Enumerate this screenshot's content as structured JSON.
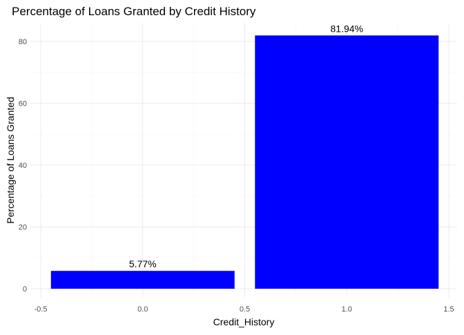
{
  "chart_data": {
    "type": "bar",
    "title": "Percentage of Loans Granted by Credit History",
    "xlabel": "Credit_History",
    "ylabel": "Percentage of Loans Granted",
    "x": [
      0,
      1
    ],
    "values": [
      5.77,
      81.94
    ],
    "data_labels": [
      "5.77%",
      "81.94%"
    ],
    "bar_color": "#0000ff",
    "xlim": [
      -0.5,
      1.5
    ],
    "ylim": [
      0,
      84
    ],
    "x_ticks": [
      -0.5,
      0.0,
      0.5,
      1.0,
      1.5
    ],
    "x_tick_labels": [
      "-0.5",
      "0.0",
      "0.5",
      "1.0",
      "1.5"
    ],
    "y_ticks": [
      0,
      20,
      40,
      60,
      80
    ],
    "y_tick_labels": [
      "0",
      "20",
      "40",
      "60",
      "80"
    ],
    "grid": true,
    "legend": "none"
  }
}
